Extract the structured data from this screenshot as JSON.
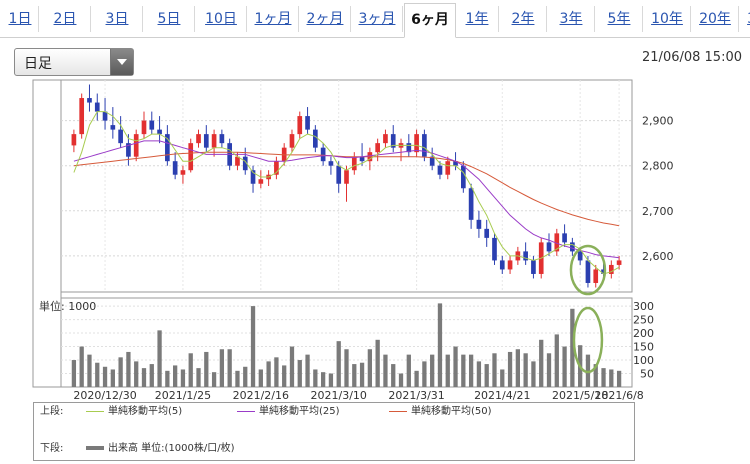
{
  "tabs": [
    "1日",
    "2日",
    "3日",
    "5日",
    "10日",
    "1ヶ月",
    "2ヶ月",
    "3ヶ月",
    "6ヶ月",
    "1年",
    "2年",
    "3年",
    "5年",
    "10年",
    "20年",
    "30年"
  ],
  "active_tab": "6ヶ月",
  "dropdown": {
    "selected": "日足"
  },
  "datetime": "21/06/08 15:00",
  "volume_unit_label": "単位: 1000",
  "colors": {
    "up": "#e23030",
    "down": "#2b3fb0",
    "ma5": "#a8cc50",
    "ma25": "#9a3cc8",
    "ma50": "#d65a3a",
    "volume": "#7a7a7a",
    "highlight": "#8ab05a"
  },
  "legend": {
    "upper_label": "上段:",
    "lower_label": "下段:",
    "ma5": "単純移動平均(5)",
    "ma25": "単純移動平均(25)",
    "ma50": "単純移動平均(50)",
    "volume": "出来高 単位:(1000株/口/枚)"
  },
  "chart_data": {
    "type": "candlestick",
    "x_tick_labels": [
      "2020/12/30",
      "2021/1/25",
      "2021/2/16",
      "2021/3/10",
      "2021/3/31",
      "2021/4/21",
      "2021/5/18",
      "2021/6/8"
    ],
    "price_ticks": [
      2600,
      2700,
      2800,
      2900
    ],
    "price_ylim": [
      2520,
      2990
    ],
    "volume_ticks": [
      50,
      100,
      150,
      200,
      250,
      300
    ],
    "volume_ylim": [
      0,
      330
    ],
    "candles": [
      [
        2845,
        2880,
        2830,
        2870
      ],
      [
        2870,
        2960,
        2860,
        2950
      ],
      [
        2950,
        2980,
        2920,
        2940
      ],
      [
        2940,
        2960,
        2900,
        2920
      ],
      [
        2920,
        2950,
        2880,
        2900
      ],
      [
        2890,
        2930,
        2860,
        2880
      ],
      [
        2880,
        2910,
        2840,
        2850
      ],
      [
        2850,
        2870,
        2800,
        2820
      ],
      [
        2820,
        2880,
        2810,
        2870
      ],
      [
        2870,
        2920,
        2860,
        2900
      ],
      [
        2900,
        2920,
        2870,
        2880
      ],
      [
        2880,
        2910,
        2850,
        2870
      ],
      [
        2870,
        2890,
        2800,
        2810
      ],
      [
        2810,
        2830,
        2770,
        2780
      ],
      [
        2780,
        2800,
        2760,
        2790
      ],
      [
        2790,
        2860,
        2785,
        2850
      ],
      [
        2850,
        2880,
        2840,
        2870
      ],
      [
        2870,
        2890,
        2830,
        2840
      ],
      [
        2840,
        2880,
        2820,
        2870
      ],
      [
        2870,
        2880,
        2840,
        2850
      ],
      [
        2850,
        2860,
        2790,
        2800
      ],
      [
        2800,
        2830,
        2790,
        2820
      ],
      [
        2820,
        2840,
        2780,
        2790
      ],
      [
        2790,
        2800,
        2740,
        2760
      ],
      [
        2760,
        2790,
        2750,
        2770
      ],
      [
        2770,
        2790,
        2755,
        2780
      ],
      [
        2780,
        2820,
        2770,
        2810
      ],
      [
        2810,
        2850,
        2800,
        2840
      ],
      [
        2840,
        2880,
        2830,
        2870
      ],
      [
        2870,
        2920,
        2860,
        2910
      ],
      [
        2910,
        2930,
        2870,
        2880
      ],
      [
        2880,
        2890,
        2830,
        2840
      ],
      [
        2840,
        2850,
        2800,
        2810
      ],
      [
        2810,
        2820,
        2780,
        2800
      ],
      [
        2800,
        2810,
        2740,
        2760
      ],
      [
        2760,
        2800,
        2720,
        2790
      ],
      [
        2790,
        2830,
        2780,
        2820
      ],
      [
        2820,
        2850,
        2800,
        2810
      ],
      [
        2810,
        2840,
        2790,
        2830
      ],
      [
        2830,
        2860,
        2810,
        2850
      ],
      [
        2850,
        2880,
        2840,
        2870
      ],
      [
        2870,
        2890,
        2830,
        2840
      ],
      [
        2840,
        2860,
        2810,
        2850
      ],
      [
        2850,
        2870,
        2820,
        2830
      ],
      [
        2830,
        2880,
        2820,
        2870
      ],
      [
        2870,
        2880,
        2810,
        2820
      ],
      [
        2820,
        2840,
        2790,
        2800
      ],
      [
        2800,
        2810,
        2770,
        2780
      ],
      [
        2780,
        2820,
        2770,
        2810
      ],
      [
        2810,
        2830,
        2790,
        2800
      ],
      [
        2800,
        2810,
        2740,
        2750
      ],
      [
        2750,
        2760,
        2660,
        2680
      ],
      [
        2680,
        2700,
        2640,
        2660
      ],
      [
        2660,
        2680,
        2620,
        2640
      ],
      [
        2640,
        2650,
        2580,
        2590
      ],
      [
        2590,
        2600,
        2560,
        2570
      ],
      [
        2570,
        2600,
        2560,
        2590
      ],
      [
        2590,
        2620,
        2580,
        2610
      ],
      [
        2610,
        2630,
        2580,
        2590
      ],
      [
        2590,
        2600,
        2550,
        2560
      ],
      [
        2560,
        2640,
        2550,
        2630
      ],
      [
        2630,
        2650,
        2600,
        2610
      ],
      [
        2610,
        2660,
        2600,
        2650
      ],
      [
        2650,
        2670,
        2620,
        2630
      ],
      [
        2630,
        2640,
        2600,
        2610
      ],
      [
        2610,
        2620,
        2580,
        2590
      ],
      [
        2590,
        2600,
        2530,
        2540
      ],
      [
        2540,
        2580,
        2530,
        2570
      ],
      [
        2570,
        2590,
        2550,
        2560
      ],
      [
        2560,
        2590,
        2550,
        2580
      ],
      [
        2580,
        2600,
        2570,
        2590
      ]
    ],
    "volume": [
      100,
      150,
      120,
      90,
      75,
      65,
      110,
      130,
      95,
      70,
      85,
      210,
      60,
      80,
      65,
      125,
      70,
      130,
      55,
      140,
      140,
      60,
      75,
      300,
      65,
      95,
      110,
      80,
      150,
      100,
      120,
      65,
      55,
      50,
      170,
      140,
      85,
      90,
      140,
      175,
      120,
      85,
      50,
      120,
      60,
      95,
      120,
      310,
      120,
      150,
      120,
      120,
      95,
      85,
      125,
      65,
      130,
      140,
      125,
      95,
      175,
      125,
      195,
      150,
      290,
      155,
      120,
      85,
      70,
      65,
      60
    ],
    "ma5": [
      2785,
      2830,
      2890,
      2920,
      2920,
      2910,
      2890,
      2860,
      2855,
      2860,
      2870,
      2870,
      2860,
      2835,
      2810,
      2810,
      2820,
      2830,
      2840,
      2840,
      2835,
      2820,
      2810,
      2785,
      2775,
      2775,
      2785,
      2805,
      2830,
      2860,
      2870,
      2865,
      2850,
      2830,
      2800,
      2790,
      2800,
      2805,
      2815,
      2825,
      2840,
      2845,
      2845,
      2845,
      2845,
      2840,
      2825,
      2805,
      2800,
      2800,
      2785,
      2755,
      2720,
      2690,
      2650,
      2620,
      2600,
      2600,
      2595,
      2590,
      2595,
      2605,
      2615,
      2625,
      2625,
      2615,
      2590,
      2575,
      2560,
      2565,
      2575
    ],
    "ma25": [
      2810,
      2815,
      2820,
      2825,
      2830,
      2835,
      2840,
      2845,
      2850,
      2855,
      2855,
      2855,
      2850,
      2845,
      2840,
      2835,
      2830,
      2825,
      2825,
      2825,
      2825,
      2825,
      2825,
      2820,
      2815,
      2810,
      2810,
      2810,
      2812,
      2815,
      2818,
      2820,
      2822,
      2822,
      2820,
      2818,
      2818,
      2820,
      2822,
      2824,
      2826,
      2828,
      2830,
      2832,
      2834,
      2832,
      2828,
      2822,
      2816,
      2810,
      2800,
      2785,
      2770,
      2750,
      2730,
      2710,
      2690,
      2675,
      2660,
      2648,
      2640,
      2635,
      2628,
      2622,
      2617,
      2612,
      2608,
      2603,
      2600,
      2598,
      2596
    ],
    "ma50": [
      2800,
      2802,
      2804,
      2806,
      2808,
      2810,
      2812,
      2814,
      2816,
      2818,
      2820,
      2822,
      2824,
      2826,
      2827,
      2828,
      2829,
      2830,
      2830,
      2830,
      2830,
      2830,
      2829,
      2828,
      2827,
      2826,
      2825,
      2824,
      2824,
      2824,
      2824,
      2824,
      2823,
      2822,
      2821,
      2820,
      2820,
      2820,
      2820,
      2820,
      2820,
      2820,
      2820,
      2820,
      2820,
      2819,
      2818,
      2816,
      2813,
      2810,
      2805,
      2798,
      2790,
      2782,
      2772,
      2762,
      2752,
      2743,
      2734,
      2725,
      2717,
      2710,
      2703,
      2697,
      2691,
      2686,
      2681,
      2677,
      2673,
      2670,
      2667
    ]
  }
}
